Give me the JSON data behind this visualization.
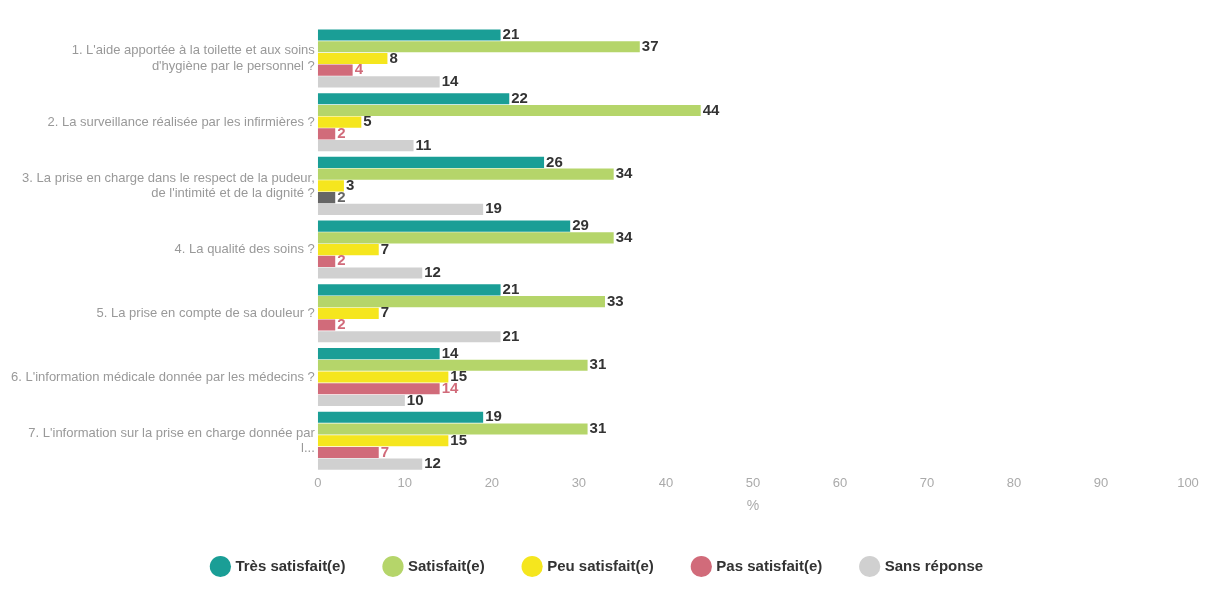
{
  "chart_data": {
    "type": "bar",
    "orientation": "horizontal",
    "xlabel": "%",
    "categories": [
      "1. L'aide apportée à la toilette et aux soins d'hygiène par le personnel ?",
      "2. La surveillance réalisée par les infirmières ?",
      "3. La prise en charge dans le respect de la pudeur, de l'intimité et de la dignité ?",
      "4. La qualité des soins ?",
      "5. La prise en compte de sa douleur ?",
      "6. L'information médicale donnée par les médecins ?",
      "7. L'information sur la prise en charge donnée par l..."
    ],
    "series": [
      {
        "name": "Très satisfait(e)",
        "color": "#1a9e96",
        "values": [
          21,
          22,
          26,
          29,
          21,
          14,
          19
        ]
      },
      {
        "name": "Satisfait(e)",
        "color": "#b5d56a",
        "values": [
          37,
          44,
          34,
          34,
          33,
          31,
          31
        ]
      },
      {
        "name": "Peu satisfait(e)",
        "color": "#f5e61e",
        "values": [
          8,
          5,
          3,
          7,
          7,
          15,
          15
        ]
      },
      {
        "name": "Pas satisfait(e)",
        "color": "#d16b7a",
        "colors": [
          "#d16b7a",
          "#d16b7a",
          "#666666",
          "#d16b7a",
          "#d16b7a",
          "#d16b7a",
          "#d16b7a"
        ],
        "values": [
          4,
          2,
          2,
          2,
          2,
          14,
          7
        ]
      },
      {
        "name": "Sans réponse",
        "color": "#d0d0d0",
        "values": [
          14,
          11,
          19,
          12,
          21,
          10,
          12
        ]
      }
    ],
    "xlim": [
      0,
      100
    ],
    "xticks": [
      0,
      10,
      20,
      30,
      40,
      50,
      60,
      70,
      80,
      90,
      100
    ],
    "data_labels": true,
    "legend": "bottom",
    "grid": false,
    "marker": "circle"
  }
}
